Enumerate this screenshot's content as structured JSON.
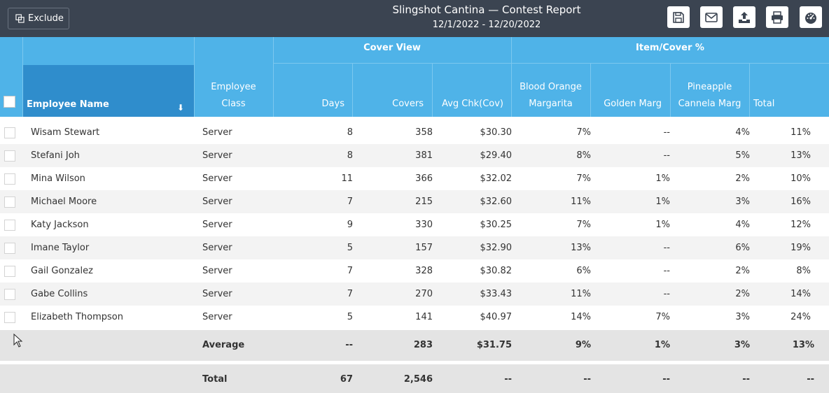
{
  "toolbar": {
    "exclude_label": "Exclude",
    "title": "Slingshot Cantina — Contest Report",
    "date_range": "12/1/2022 - 12/20/2022",
    "icons": [
      "save-icon",
      "email-icon",
      "upload-icon",
      "print-icon",
      "dashboard-icon"
    ]
  },
  "header": {
    "groups": {
      "cover_view": "Cover View",
      "item_cover": "Item/Cover %"
    },
    "columns": {
      "name": "Employee Name",
      "class_l1": "Employee",
      "class_l2": "Class",
      "days": "Days",
      "covers": "Covers",
      "avg": "Avg Chk(Cov)",
      "blood_l1": "Blood Orange",
      "blood_l2": "Margarita",
      "golden": "Golden Marg",
      "pine_l1": "Pineapple",
      "pine_l2": "Cannela Marg",
      "total": "Total"
    },
    "sort_icon": "arrow-down-icon"
  },
  "rows": [
    {
      "name": "Wisam Stewart",
      "class": "Server",
      "days": "8",
      "covers": "358",
      "avg": "$30.30",
      "blood": "7%",
      "golden": "--",
      "pine": "4%",
      "total": "11%"
    },
    {
      "name": "Stefani Joh",
      "class": "Server",
      "days": "8",
      "covers": "381",
      "avg": "$29.40",
      "blood": "8%",
      "golden": "--",
      "pine": "5%",
      "total": "13%"
    },
    {
      "name": "Mina Wilson",
      "class": "Server",
      "days": "11",
      "covers": "366",
      "avg": "$32.02",
      "blood": "7%",
      "golden": "1%",
      "pine": "2%",
      "total": "10%"
    },
    {
      "name": "Michael Moore",
      "class": "Server",
      "days": "7",
      "covers": "215",
      "avg": "$32.60",
      "blood": "11%",
      "golden": "1%",
      "pine": "3%",
      "total": "16%"
    },
    {
      "name": "Katy Jackson",
      "class": "Server",
      "days": "9",
      "covers": "330",
      "avg": "$30.25",
      "blood": "7%",
      "golden": "1%",
      "pine": "4%",
      "total": "12%"
    },
    {
      "name": "Imane Taylor",
      "class": "Server",
      "days": "5",
      "covers": "157",
      "avg": "$32.90",
      "blood": "13%",
      "golden": "--",
      "pine": "6%",
      "total": "19%"
    },
    {
      "name": "Gail Gonzalez",
      "class": "Server",
      "days": "7",
      "covers": "328",
      "avg": "$30.82",
      "blood": "6%",
      "golden": "--",
      "pine": "2%",
      "total": "8%"
    },
    {
      "name": "Gabe Collins",
      "class": "Server",
      "days": "7",
      "covers": "270",
      "avg": "$33.43",
      "blood": "11%",
      "golden": "--",
      "pine": "2%",
      "total": "14%"
    },
    {
      "name": "Elizabeth Thompson",
      "class": "Server",
      "days": "5",
      "covers": "141",
      "avg": "$40.97",
      "blood": "14%",
      "golden": "7%",
      "pine": "3%",
      "total": "24%"
    }
  ],
  "average": {
    "label": "Average",
    "days": "--",
    "covers": "283",
    "avg": "$31.75",
    "blood": "9%",
    "golden": "1%",
    "pine": "3%",
    "total": "13%"
  },
  "totals": {
    "label": "Total",
    "days": "67",
    "covers": "2,546",
    "avg": "--",
    "blood": "--",
    "golden": "--",
    "pine": "--",
    "total": "--"
  }
}
